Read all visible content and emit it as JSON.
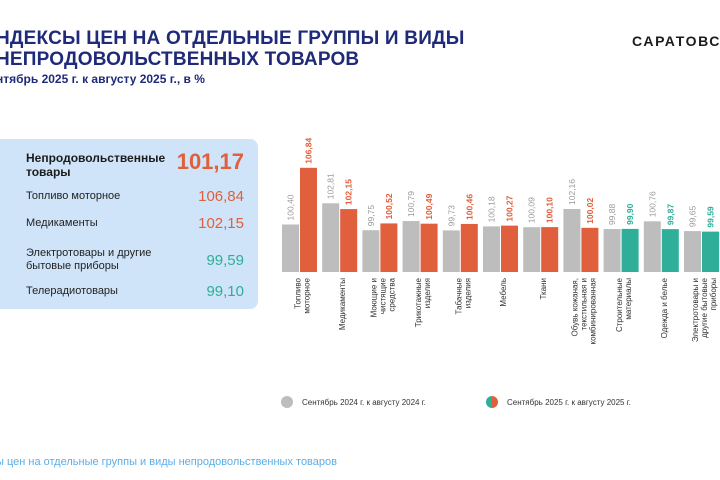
{
  "header": {
    "title_line1": "НДЕКСЫ ЦЕН НА ОТДЕЛЬНЫЕ ГРУППЫ И ВИДЫ",
    "title_line2": "НЕПРОДОВОЛЬСТВЕННЫХ ТОВАРОВ",
    "subtitle": "нтябрь 2025 г. к августу 2025 г., в %",
    "brand": "САРАТОВС"
  },
  "panel": {
    "items": [
      {
        "label": "Непродовольственные товары",
        "value": "101,17",
        "color": "#e05f3c"
      },
      {
        "label": "Топливо моторное",
        "value": "106,84",
        "color": "#e05f3c"
      },
      {
        "label": "Медикаменты",
        "value": "102,15",
        "color": "#e05f3c"
      },
      {
        "label": "Электротовары и другие бытовые приборы",
        "value": "99,59",
        "color": "#2fae9a"
      },
      {
        "label": "Телерадиотовары",
        "value": "99,10",
        "color": "#2fae9a"
      }
    ]
  },
  "footer": {
    "text": "ы цен на отдельные группы и виды непродовольственных товаров"
  },
  "chart_data": {
    "type": "bar",
    "title": "",
    "categories": [
      "Топливо моторное",
      "Медикаменты",
      "Моющие и чистящие средства",
      "Трикотажные изделия",
      "Табачные изделия",
      "Мебель",
      "Ткани",
      "Обувь кожаная, текстильная и комбинированная",
      "Строительные материалы",
      "Одежда и белье",
      "Электротовары и другие бытовые приборы"
    ],
    "series": [
      {
        "name": "Сентябрь  2024 г. к  августу  2024 г.",
        "color": "#bdbdbd",
        "values": [
          100.4,
          102.81,
          99.75,
          100.79,
          99.73,
          100.18,
          100.09,
          102.16,
          99.88,
          100.76,
          99.65
        ],
        "labels": [
          "100,40",
          "102,81",
          "99,75",
          "100,79",
          "99,73",
          "100,18",
          "100,09",
          "102,16",
          "99,88",
          "100,76",
          "99,65"
        ]
      },
      {
        "name": "Сентябрь  2025 г. к  августу  2025 г.",
        "color_up": "#e05f3c",
        "color_down": "#2fae9a",
        "values": [
          106.84,
          102.15,
          100.52,
          100.49,
          100.46,
          100.27,
          100.1,
          100.02,
          99.9,
          99.87,
          99.59
        ],
        "labels": [
          "106,84",
          "102,15",
          "100,52",
          "100,49",
          "100,46",
          "100,27",
          "100,10",
          "100,02",
          "99,90",
          "99,87",
          "99,59"
        ]
      }
    ],
    "ylim": [
      95,
      108
    ],
    "xlabel": "",
    "ylabel": "",
    "legend": "bottom"
  }
}
